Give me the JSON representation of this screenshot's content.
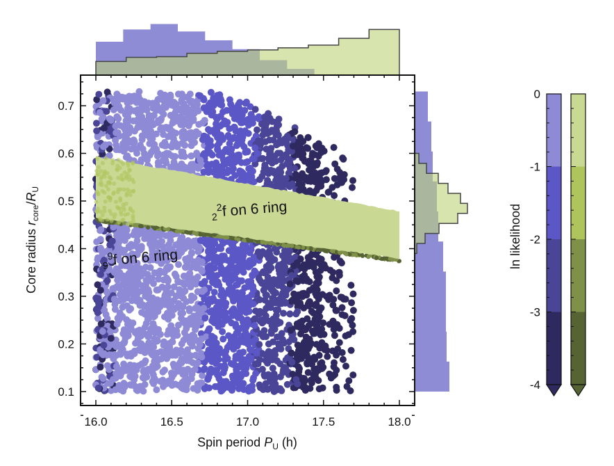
{
  "chart_data": {
    "type": "scatter",
    "xlabel": {
      "main": "Spin period ",
      "italic": "P",
      "sub": "U",
      "suffix": " (h)"
    },
    "ylabel": {
      "main": "Core radius ",
      "italic": "r",
      "sub": "core",
      "slash": "/",
      "italic2": "R",
      "sub2": "U"
    },
    "xlim": [
      15.9,
      18.1
    ],
    "ylim": [
      0.05,
      0.75
    ],
    "xticks": [
      "16.0",
      "16.5",
      "17.0",
      "17.5",
      "18.0"
    ],
    "yticks": [
      "0.1",
      "0.2",
      "0.3",
      "0.4",
      "0.5",
      "0.6",
      "0.7"
    ],
    "series": [
      {
        "name_parts": {
          "sub": "9",
          "sup": "9",
          "text": "f on 6 ring"
        },
        "colors": [
          "#8e8ad6",
          "#5c57c7",
          "#4a4597",
          "#2e2a60"
        ],
        "likelihood_bands_x": [
          [
            16.1,
            16.7
          ],
          [
            16.7,
            17.05
          ],
          [
            17.05,
            17.3
          ],
          [
            17.3,
            17.7
          ]
        ],
        "x_range": [
          16.0,
          17.7
        ],
        "y_range": [
          0.1,
          0.73
        ]
      },
      {
        "name_parts": {
          "sub": "2",
          "sup": "2",
          "text": "f on 6 ring"
        },
        "colors": [
          "#c9d893",
          "#b0c45d",
          "#7f9148",
          "#566333"
        ],
        "x_range": [
          16.0,
          18.0
        ],
        "upper_edge": [
          [
            16.0,
            0.595
          ],
          [
            18.0,
            0.48
          ]
        ],
        "lower_edge": [
          [
            16.0,
            0.46
          ],
          [
            18.0,
            0.375
          ]
        ]
      }
    ],
    "top_histogram": {
      "purple": {
        "edges": [
          16.0,
          16.18,
          16.36,
          16.54,
          16.72,
          16.9,
          17.08,
          17.26,
          17.44
        ],
        "values": [
          49,
          67,
          75,
          64,
          51,
          38,
          22,
          9
        ]
      },
      "green": {
        "edges": [
          16.0,
          16.2,
          16.4,
          16.6,
          16.8,
          17.0,
          17.2,
          17.4,
          17.6,
          17.8,
          18.0
        ],
        "values": [
          20,
          26,
          27,
          32,
          35,
          37,
          40,
          44,
          54,
          67
        ]
      }
    },
    "right_histogram": {
      "purple": {
        "edges": [
          0.1,
          0.163,
          0.226,
          0.289,
          0.352,
          0.415,
          0.478,
          0.541,
          0.604,
          0.667,
          0.73
        ],
        "values": [
          50,
          46,
          45,
          45,
          41,
          34,
          32,
          26,
          24,
          19
        ]
      },
      "green": {
        "edges": [
          0.39,
          0.411,
          0.432,
          0.453,
          0.474,
          0.495,
          0.516,
          0.537,
          0.558,
          0.579,
          0.6
        ],
        "values": [
          3,
          15,
          35,
          62,
          76,
          66,
          48,
          34,
          17,
          6
        ]
      }
    },
    "colorbar": {
      "label": "ln likelihood",
      "ticks": [
        "0",
        "-1",
        "-2",
        "-3",
        "-4"
      ],
      "range": [
        -4,
        0
      ],
      "extend": "min"
    }
  }
}
